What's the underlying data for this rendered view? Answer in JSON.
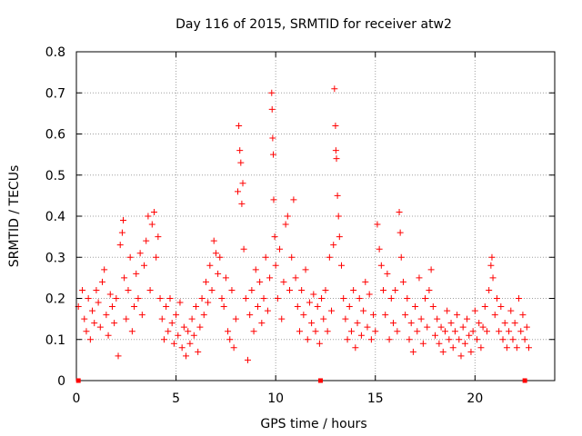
{
  "chart_data": {
    "type": "scatter",
    "title": "Day 116 of 2015, SRMTID for receiver atw2",
    "xlabel": "GPS time / hours",
    "ylabel": "SRMTID / TECUs",
    "xlim": [
      0,
      24
    ],
    "ylim": [
      0,
      0.8
    ],
    "xticks": [
      0,
      5,
      10,
      15,
      20
    ],
    "yticks": [
      0,
      0.1,
      0.2,
      0.3,
      0.4,
      0.5,
      0.6,
      0.7,
      0.8
    ],
    "xtick_labels": [
      "0",
      "5",
      "10",
      "15",
      "20"
    ],
    "ytick_labels": [
      "0",
      "0.1",
      "0.2",
      "0.3",
      "0.4",
      "0.5",
      "0.6",
      "0.7",
      "0.8"
    ],
    "grid": true,
    "marker": "+",
    "color": "#ff0000",
    "gap_markers_x": [
      0.1,
      12.25,
      22.5
    ],
    "series": [
      {
        "name": "SRMTID",
        "points": [
          [
            0.1,
            0.18
          ],
          [
            0.3,
            0.22
          ],
          [
            0.4,
            0.15
          ],
          [
            0.5,
            0.12
          ],
          [
            0.6,
            0.2
          ],
          [
            0.7,
            0.1
          ],
          [
            0.8,
            0.17
          ],
          [
            0.9,
            0.14
          ],
          [
            1.0,
            0.22
          ],
          [
            1.1,
            0.19
          ],
          [
            1.2,
            0.13
          ],
          [
            1.3,
            0.24
          ],
          [
            1.4,
            0.27
          ],
          [
            1.5,
            0.16
          ],
          [
            1.6,
            0.11
          ],
          [
            1.7,
            0.21
          ],
          [
            1.8,
            0.18
          ],
          [
            1.9,
            0.14
          ],
          [
            2.0,
            0.2
          ],
          [
            2.1,
            0.06
          ],
          [
            2.2,
            0.33
          ],
          [
            2.3,
            0.36
          ],
          [
            2.35,
            0.39
          ],
          [
            2.4,
            0.25
          ],
          [
            2.5,
            0.15
          ],
          [
            2.6,
            0.22
          ],
          [
            2.7,
            0.3
          ],
          [
            2.8,
            0.12
          ],
          [
            2.9,
            0.18
          ],
          [
            3.0,
            0.26
          ],
          [
            3.1,
            0.2
          ],
          [
            3.2,
            0.31
          ],
          [
            3.3,
            0.16
          ],
          [
            3.4,
            0.28
          ],
          [
            3.5,
            0.34
          ],
          [
            3.6,
            0.4
          ],
          [
            3.7,
            0.22
          ],
          [
            3.8,
            0.38
          ],
          [
            3.9,
            0.41
          ],
          [
            4.0,
            0.3
          ],
          [
            4.1,
            0.35
          ],
          [
            4.2,
            0.2
          ],
          [
            4.3,
            0.15
          ],
          [
            4.4,
            0.1
          ],
          [
            4.5,
            0.18
          ],
          [
            4.6,
            0.12
          ],
          [
            4.7,
            0.2
          ],
          [
            4.8,
            0.14
          ],
          [
            4.9,
            0.09
          ],
          [
            5.0,
            0.16
          ],
          [
            5.1,
            0.11
          ],
          [
            5.2,
            0.19
          ],
          [
            5.3,
            0.08
          ],
          [
            5.4,
            0.13
          ],
          [
            5.5,
            0.06
          ],
          [
            5.6,
            0.12
          ],
          [
            5.7,
            0.09
          ],
          [
            5.8,
            0.15
          ],
          [
            5.9,
            0.11
          ],
          [
            6.0,
            0.18
          ],
          [
            6.1,
            0.07
          ],
          [
            6.2,
            0.13
          ],
          [
            6.3,
            0.2
          ],
          [
            6.4,
            0.16
          ],
          [
            6.5,
            0.24
          ],
          [
            6.6,
            0.19
          ],
          [
            6.7,
            0.28
          ],
          [
            6.8,
            0.22
          ],
          [
            6.9,
            0.34
          ],
          [
            7.0,
            0.31
          ],
          [
            7.1,
            0.26
          ],
          [
            7.2,
            0.3
          ],
          [
            7.3,
            0.2
          ],
          [
            7.4,
            0.18
          ],
          [
            7.5,
            0.25
          ],
          [
            7.6,
            0.12
          ],
          [
            7.7,
            0.1
          ],
          [
            7.8,
            0.22
          ],
          [
            7.9,
            0.08
          ],
          [
            8.0,
            0.15
          ],
          [
            8.1,
            0.46
          ],
          [
            8.15,
            0.62
          ],
          [
            8.2,
            0.56
          ],
          [
            8.25,
            0.53
          ],
          [
            8.3,
            0.43
          ],
          [
            8.35,
            0.48
          ],
          [
            8.4,
            0.32
          ],
          [
            8.5,
            0.2
          ],
          [
            8.6,
            0.05
          ],
          [
            8.7,
            0.16
          ],
          [
            8.8,
            0.22
          ],
          [
            8.9,
            0.12
          ],
          [
            9.0,
            0.27
          ],
          [
            9.1,
            0.18
          ],
          [
            9.2,
            0.24
          ],
          [
            9.3,
            0.14
          ],
          [
            9.4,
            0.2
          ],
          [
            9.5,
            0.3
          ],
          [
            9.6,
            0.17
          ],
          [
            9.7,
            0.25
          ],
          [
            9.8,
            0.7
          ],
          [
            9.82,
            0.66
          ],
          [
            9.85,
            0.59
          ],
          [
            9.88,
            0.55
          ],
          [
            9.9,
            0.44
          ],
          [
            9.95,
            0.35
          ],
          [
            10.0,
            0.28
          ],
          [
            10.1,
            0.2
          ],
          [
            10.2,
            0.32
          ],
          [
            10.3,
            0.15
          ],
          [
            10.4,
            0.24
          ],
          [
            10.5,
            0.38
          ],
          [
            10.6,
            0.4
          ],
          [
            10.7,
            0.22
          ],
          [
            10.8,
            0.3
          ],
          [
            10.9,
            0.44
          ],
          [
            11.0,
            0.25
          ],
          [
            11.1,
            0.18
          ],
          [
            11.2,
            0.12
          ],
          [
            11.3,
            0.22
          ],
          [
            11.4,
            0.16
          ],
          [
            11.5,
            0.27
          ],
          [
            11.6,
            0.1
          ],
          [
            11.7,
            0.19
          ],
          [
            11.8,
            0.14
          ],
          [
            11.9,
            0.21
          ],
          [
            12.0,
            0.12
          ],
          [
            12.1,
            0.18
          ],
          [
            12.2,
            0.09
          ],
          [
            12.3,
            0.2
          ],
          [
            12.4,
            0.15
          ],
          [
            12.5,
            0.22
          ],
          [
            12.6,
            0.12
          ],
          [
            12.7,
            0.3
          ],
          [
            12.8,
            0.17
          ],
          [
            12.9,
            0.33
          ],
          [
            12.95,
            0.71
          ],
          [
            13.0,
            0.62
          ],
          [
            13.02,
            0.56
          ],
          [
            13.05,
            0.54
          ],
          [
            13.1,
            0.45
          ],
          [
            13.15,
            0.4
          ],
          [
            13.2,
            0.35
          ],
          [
            13.3,
            0.28
          ],
          [
            13.4,
            0.2
          ],
          [
            13.5,
            0.15
          ],
          [
            13.6,
            0.1
          ],
          [
            13.7,
            0.18
          ],
          [
            13.8,
            0.12
          ],
          [
            13.9,
            0.22
          ],
          [
            14.0,
            0.08
          ],
          [
            14.1,
            0.14
          ],
          [
            14.2,
            0.2
          ],
          [
            14.3,
            0.11
          ],
          [
            14.4,
            0.17
          ],
          [
            14.5,
            0.24
          ],
          [
            14.6,
            0.13
          ],
          [
            14.7,
            0.21
          ],
          [
            14.8,
            0.1
          ],
          [
            14.9,
            0.16
          ],
          [
            15.0,
            0.12
          ],
          [
            15.1,
            0.38
          ],
          [
            15.2,
            0.32
          ],
          [
            15.3,
            0.28
          ],
          [
            15.4,
            0.22
          ],
          [
            15.5,
            0.16
          ],
          [
            15.6,
            0.26
          ],
          [
            15.7,
            0.1
          ],
          [
            15.8,
            0.2
          ],
          [
            15.9,
            0.14
          ],
          [
            16.0,
            0.22
          ],
          [
            16.1,
            0.12
          ],
          [
            16.2,
            0.41
          ],
          [
            16.25,
            0.36
          ],
          [
            16.3,
            0.3
          ],
          [
            16.4,
            0.24
          ],
          [
            16.5,
            0.16
          ],
          [
            16.6,
            0.2
          ],
          [
            16.7,
            0.1
          ],
          [
            16.8,
            0.14
          ],
          [
            16.9,
            0.07
          ],
          [
            17.0,
            0.18
          ],
          [
            17.1,
            0.12
          ],
          [
            17.2,
            0.25
          ],
          [
            17.3,
            0.15
          ],
          [
            17.4,
            0.09
          ],
          [
            17.5,
            0.2
          ],
          [
            17.6,
            0.13
          ],
          [
            17.7,
            0.22
          ],
          [
            17.8,
            0.27
          ],
          [
            17.9,
            0.18
          ],
          [
            18.0,
            0.11
          ],
          [
            18.1,
            0.15
          ],
          [
            18.2,
            0.09
          ],
          [
            18.3,
            0.13
          ],
          [
            18.4,
            0.07
          ],
          [
            18.5,
            0.12
          ],
          [
            18.6,
            0.17
          ],
          [
            18.7,
            0.1
          ],
          [
            18.8,
            0.14
          ],
          [
            18.9,
            0.08
          ],
          [
            19.0,
            0.12
          ],
          [
            19.1,
            0.16
          ],
          [
            19.2,
            0.1
          ],
          [
            19.3,
            0.06
          ],
          [
            19.4,
            0.13
          ],
          [
            19.5,
            0.09
          ],
          [
            19.6,
            0.15
          ],
          [
            19.7,
            0.11
          ],
          [
            19.8,
            0.07
          ],
          [
            19.9,
            0.12
          ],
          [
            20.0,
            0.17
          ],
          [
            20.1,
            0.1
          ],
          [
            20.2,
            0.14
          ],
          [
            20.3,
            0.08
          ],
          [
            20.4,
            0.13
          ],
          [
            20.5,
            0.18
          ],
          [
            20.6,
            0.12
          ],
          [
            20.7,
            0.22
          ],
          [
            20.8,
            0.28
          ],
          [
            20.85,
            0.3
          ],
          [
            20.9,
            0.25
          ],
          [
            21.0,
            0.16
          ],
          [
            21.1,
            0.2
          ],
          [
            21.2,
            0.12
          ],
          [
            21.3,
            0.18
          ],
          [
            21.4,
            0.1
          ],
          [
            21.5,
            0.14
          ],
          [
            21.6,
            0.08
          ],
          [
            21.7,
            0.12
          ],
          [
            21.8,
            0.17
          ],
          [
            21.9,
            0.1
          ],
          [
            22.0,
            0.14
          ],
          [
            22.1,
            0.08
          ],
          [
            22.2,
            0.2
          ],
          [
            22.3,
            0.12
          ],
          [
            22.4,
            0.16
          ],
          [
            22.5,
            0.1
          ],
          [
            22.6,
            0.13
          ],
          [
            22.7,
            0.08
          ]
        ]
      }
    ]
  }
}
